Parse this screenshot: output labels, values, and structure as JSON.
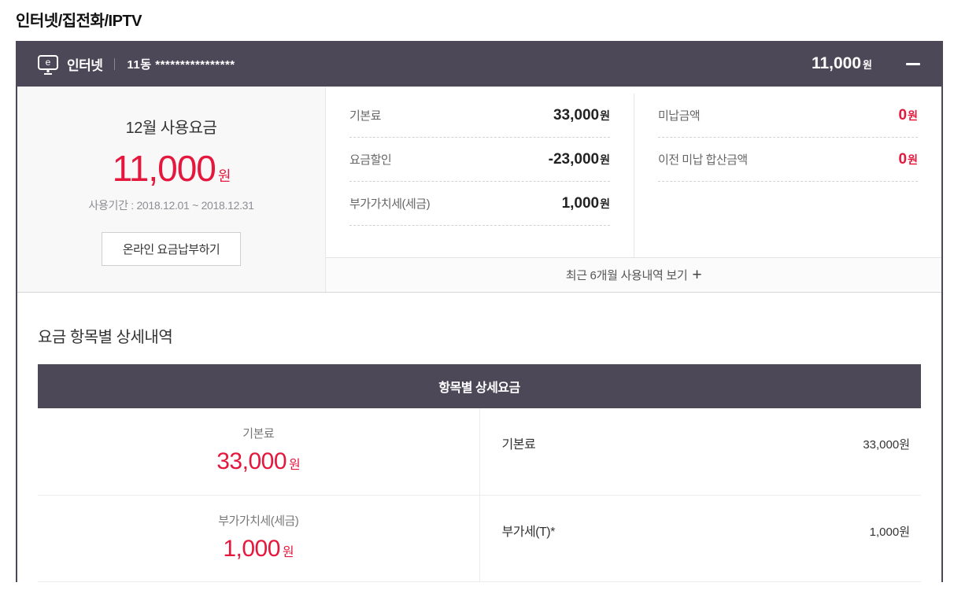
{
  "page": {
    "title": "인터넷/집전화/IPTV"
  },
  "colors": {
    "accent_red": "#e5173d",
    "header_bg": "#4c4858"
  },
  "card": {
    "header": {
      "service_label": "인터넷",
      "account_label": "11동 ****************",
      "amount": "11,000",
      "amount_unit": "원"
    },
    "summary": {
      "month_title": "12월 사용요금",
      "amount": "11,000",
      "amount_unit": "원",
      "period": "사용기간 : 2018.12.01 ~ 2018.12.31",
      "pay_button": "온라인 요금납부하기",
      "charges": [
        {
          "label": "기본료",
          "value": "33,000",
          "unit": "원"
        },
        {
          "label": "요금할인",
          "value": "-23,000",
          "unit": "원"
        },
        {
          "label": "부가가치세(세금)",
          "value": "1,000",
          "unit": "원"
        }
      ],
      "unpaid": [
        {
          "label": "미납금액",
          "value": "0",
          "unit": "원"
        },
        {
          "label": "이전 미납 합산금액",
          "value": "0",
          "unit": "원"
        }
      ],
      "history_link": "최근 6개월 사용내역 보기",
      "history_plus": "+"
    },
    "detail": {
      "section_title": "요금 항목별 상세내역",
      "table_header": "항목별 상세요금",
      "rows": [
        {
          "group_label": "기본료",
          "group_value": "33,000",
          "unit": "원",
          "item_label": "기본료",
          "item_value": "33,000원"
        },
        {
          "group_label": "부가가치세(세금)",
          "group_value": "1,000",
          "unit": "원",
          "item_label": "부가세(T)*",
          "item_value": "1,000원"
        }
      ]
    }
  }
}
